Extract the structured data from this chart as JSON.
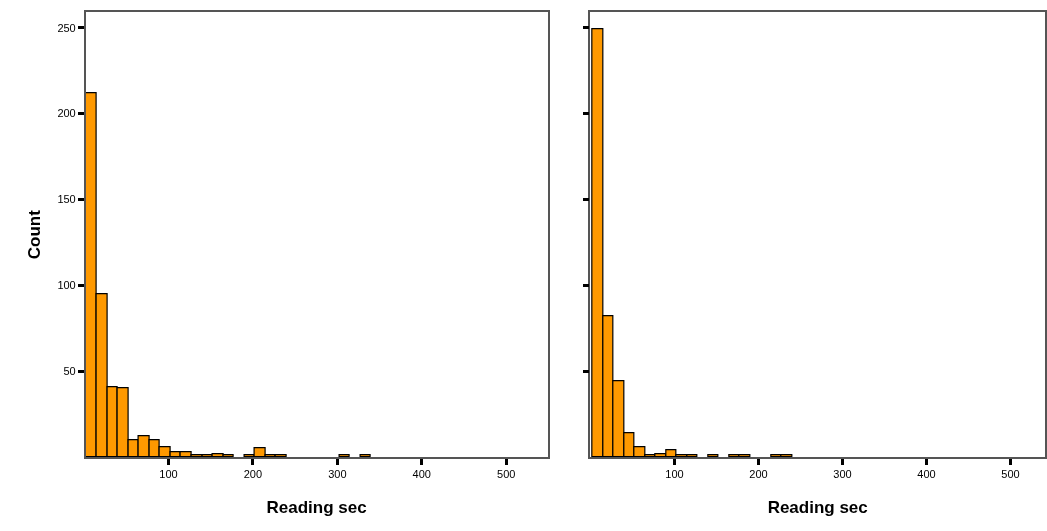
{
  "chart_data": [
    {
      "type": "histogram",
      "xlabel": "Reading sec",
      "ylabel": "Count",
      "color": "#ff9900",
      "bins": [
        2.5,
        15,
        27.5,
        40,
        52.5,
        65,
        77.5,
        90,
        102.5,
        115,
        127.5,
        140,
        152.5,
        165,
        177.5,
        190,
        202.5,
        215,
        227.5,
        240,
        252.5,
        265,
        277.5,
        290,
        302.5,
        315,
        327.5,
        340
      ],
      "values": [
        212,
        95,
        41,
        40,
        10,
        12,
        10,
        6,
        3,
        3,
        1,
        1,
        2,
        1,
        0,
        1,
        5,
        1,
        1,
        0,
        0,
        0,
        0,
        0,
        1,
        0,
        1
      ],
      "xlim": [
        2,
        549
      ],
      "ylim": [
        0,
        259
      ],
      "xticks": [
        100,
        200,
        300,
        400,
        500
      ],
      "yticks": [
        50,
        100,
        150,
        200,
        250
      ],
      "grid": false
    },
    {
      "type": "histogram",
      "xlabel": "Reading sec",
      "color": "#ff9900",
      "bins": [
        2.5,
        15,
        27.5,
        40,
        52.5,
        65,
        77.5,
        90,
        102.5,
        115,
        127.5,
        140,
        152.5,
        165,
        177.5,
        190,
        202.5,
        215,
        227.5,
        240,
        252.5,
        265,
        277.5,
        290,
        302.5,
        315,
        327.5,
        340
      ],
      "values": [
        249,
        82,
        44,
        14,
        6,
        1,
        2,
        4,
        1,
        1,
        0,
        1,
        0,
        1,
        1,
        0,
        0,
        1,
        1,
        0,
        0,
        0,
        0,
        0,
        0,
        0,
        0
      ],
      "xlim": [
        0,
        541
      ],
      "ylim": [
        0,
        259
      ],
      "xticks": [
        100,
        200,
        300,
        400,
        500
      ],
      "yticks": [
        50,
        100,
        150,
        200,
        250
      ],
      "tick_labels": "x",
      "grid": false
    }
  ]
}
